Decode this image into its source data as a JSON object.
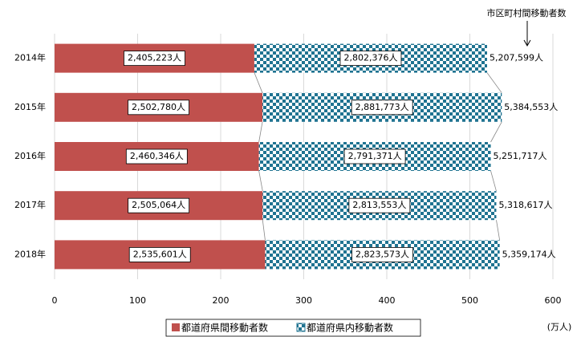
{
  "chart_data": {
    "type": "stacked-barh",
    "categories": [
      "2014年",
      "2015年",
      "2016年",
      "2017年",
      "2018年"
    ],
    "series": [
      {
        "name": "都道府県間移動者数",
        "color": "#c0504d",
        "values": [
          240.5223,
          250.278,
          246.0346,
          250.5064,
          253.5601
        ],
        "value_labels": [
          "2,405,223人",
          "2,502,780人",
          "2,460,346人",
          "2,505,064人",
          "2,535,601人"
        ]
      },
      {
        "name": "都道府県内移動者数",
        "color": "#1f7391",
        "values": [
          280.2376,
          288.1773,
          279.1371,
          281.3553,
          282.3573
        ],
        "value_labels": [
          "2,802,376人",
          "2,881,773人",
          "2,791,371人",
          "2,813,553人",
          "2,823,573人"
        ]
      }
    ],
    "totals": {
      "name": "市区町村間移動者数",
      "values": [
        520.7599,
        538.4553,
        525.1717,
        531.8617,
        535.9174
      ],
      "value_labels": [
        "5,207,599人",
        "5,384,553人",
        "5,251,717人",
        "5,318,617人",
        "5,359,174人"
      ]
    },
    "xlim": [
      0,
      600
    ],
    "xticks": [
      0,
      100,
      200,
      300,
      400,
      500,
      600
    ],
    "x_unit": "(万人)",
    "grid": true,
    "legend": "bottom"
  }
}
